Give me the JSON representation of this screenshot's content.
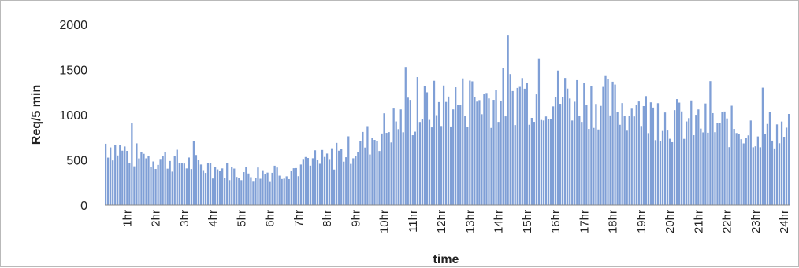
{
  "chart_data": {
    "type": "bar",
    "title": "",
    "xlabel": "time",
    "ylabel": "Req/5 min",
    "ylim": [
      0,
      2000
    ],
    "yticks": [
      0,
      500,
      1000,
      1500,
      2000
    ],
    "grid": false,
    "legend": "none",
    "bar_color": "#7f9fd6",
    "bar_edge_color": "#5b7fbf",
    "x_tick_labels": [
      "1hr",
      "2hr",
      "3hr",
      "4hr",
      "5hr",
      "6hr",
      "7hr",
      "8hr",
      "9hr",
      "10hr",
      "11hr",
      "12hr",
      "13hr",
      "14hr",
      "15hr",
      "16hr",
      "17hr",
      "18hr",
      "19hr",
      "20hr",
      "21hr",
      "22hr",
      "23hr",
      "24hr"
    ],
    "bins_per_hour": 12,
    "hourly_profile": [
      [
        0,
        700
      ],
      [
        1,
        560
      ],
      [
        2,
        530
      ],
      [
        3,
        470
      ],
      [
        4,
        400
      ],
      [
        5,
        360
      ],
      [
        6,
        380
      ],
      [
        7,
        430
      ],
      [
        8,
        540
      ],
      [
        9,
        700
      ],
      [
        10,
        900
      ],
      [
        11,
        1080
      ],
      [
        12,
        1160
      ],
      [
        13,
        1200
      ],
      [
        14,
        1240
      ],
      [
        15,
        1260
      ],
      [
        16,
        1250
      ],
      [
        17,
        1200
      ],
      [
        18,
        1120
      ],
      [
        19,
        1030
      ],
      [
        20,
        960
      ],
      [
        21,
        920
      ],
      [
        22,
        880
      ],
      [
        23,
        860
      ],
      [
        24,
        840
      ]
    ]
  }
}
